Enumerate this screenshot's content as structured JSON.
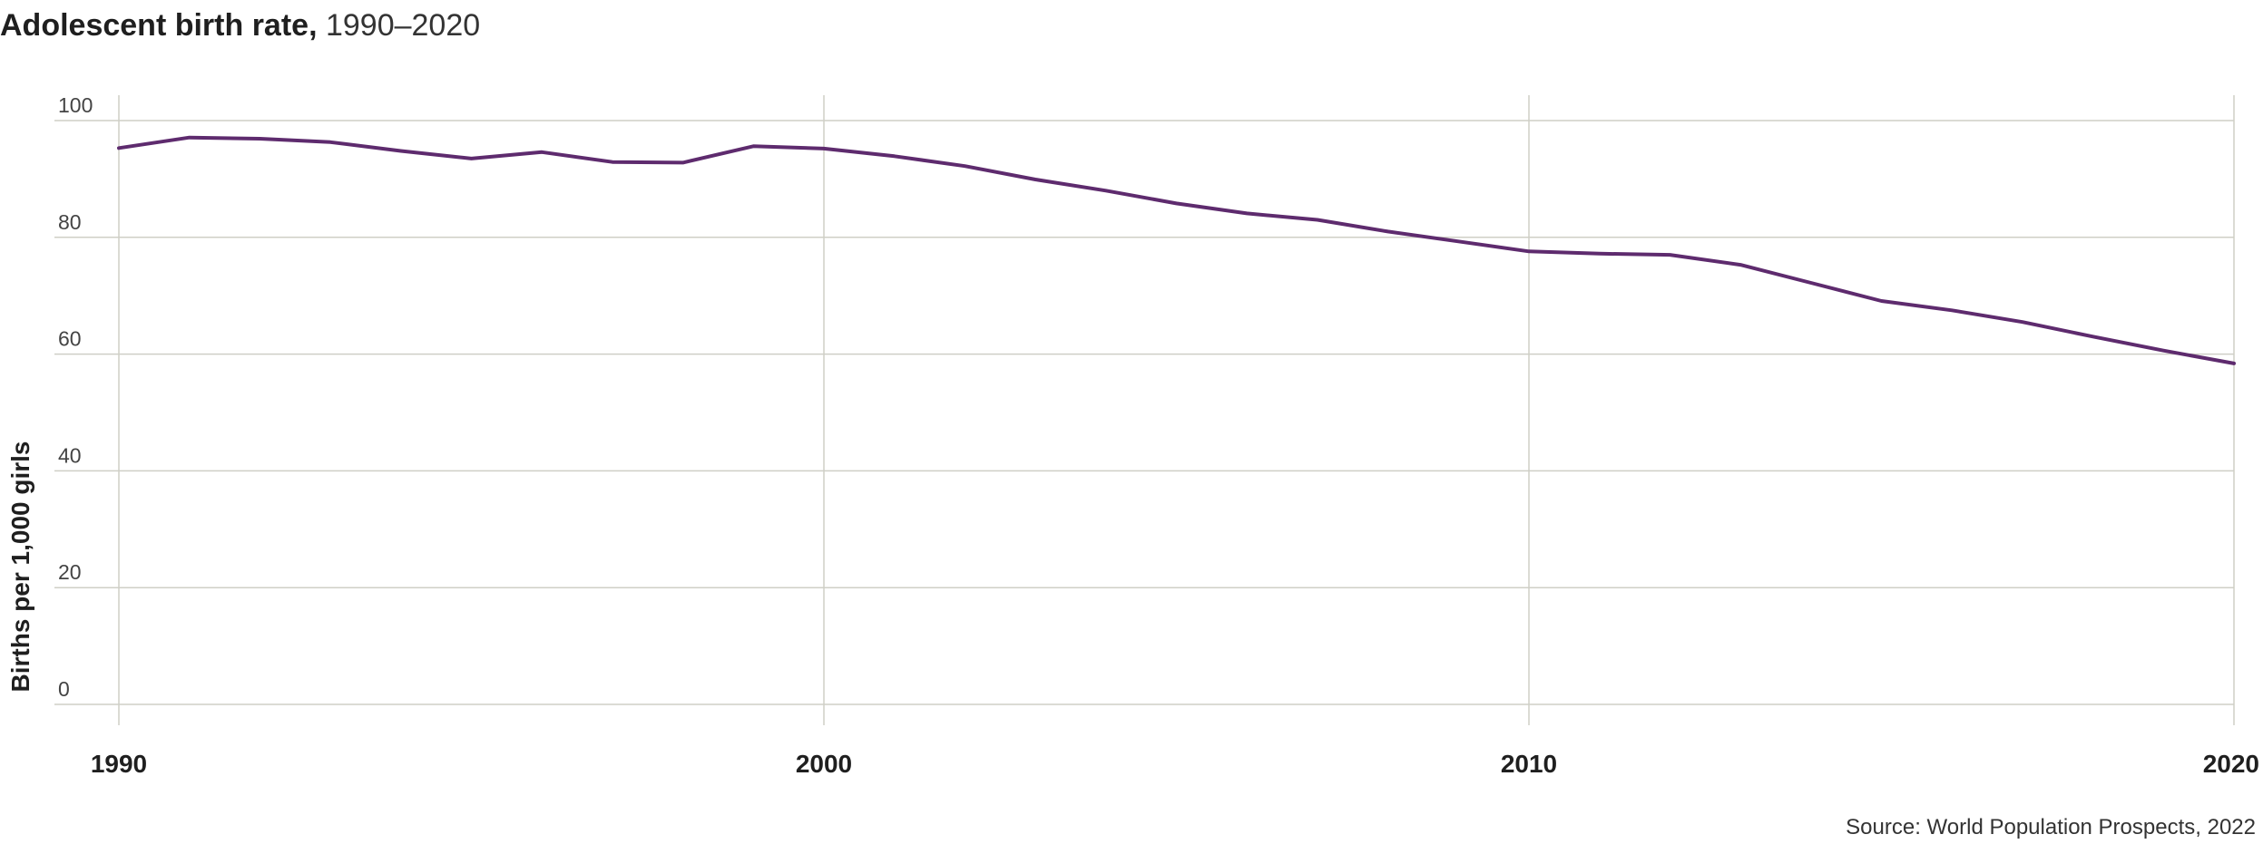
{
  "title": {
    "main": "Adolescent birth rate,",
    "sub": " 1990–2020"
  },
  "source": "Source: World Population Prospects, 2022",
  "colors": {
    "line": "#5e2b6e",
    "grid": "#cfcfc6"
  },
  "chart_data": {
    "type": "line",
    "title": "Adolescent birth rate, 1990–2020",
    "xlabel": "",
    "ylabel": "Births per 1,000 girls",
    "xlim": [
      1990,
      2020
    ],
    "ylim": [
      0,
      100
    ],
    "x_ticks": [
      1990,
      2000,
      2010,
      2020
    ],
    "y_ticks": [
      0,
      20,
      40,
      60,
      80,
      100
    ],
    "grid": true,
    "legend": "none",
    "x": [
      1990,
      1991,
      1992,
      1993,
      1994,
      1995,
      1996,
      1997,
      1998,
      1999,
      2000,
      2001,
      2002,
      2003,
      2004,
      2005,
      2006,
      2007,
      2008,
      2009,
      2010,
      2011,
      2012,
      2013,
      2014,
      2015,
      2016,
      2017,
      2018,
      2019,
      2020
    ],
    "series": [
      {
        "values": [
          95.3,
          97.1,
          96.9,
          96.3,
          94.8,
          93.5,
          94.6,
          92.9,
          92.8,
          95.6,
          95.2,
          93.9,
          92.2,
          89.9,
          88.0,
          85.8,
          84.1,
          83.0,
          81.0,
          79.3,
          77.6,
          77.2,
          77.0,
          75.3,
          72.2,
          69.1,
          67.5,
          65.5,
          63.0,
          60.6,
          58.4
        ]
      }
    ]
  }
}
